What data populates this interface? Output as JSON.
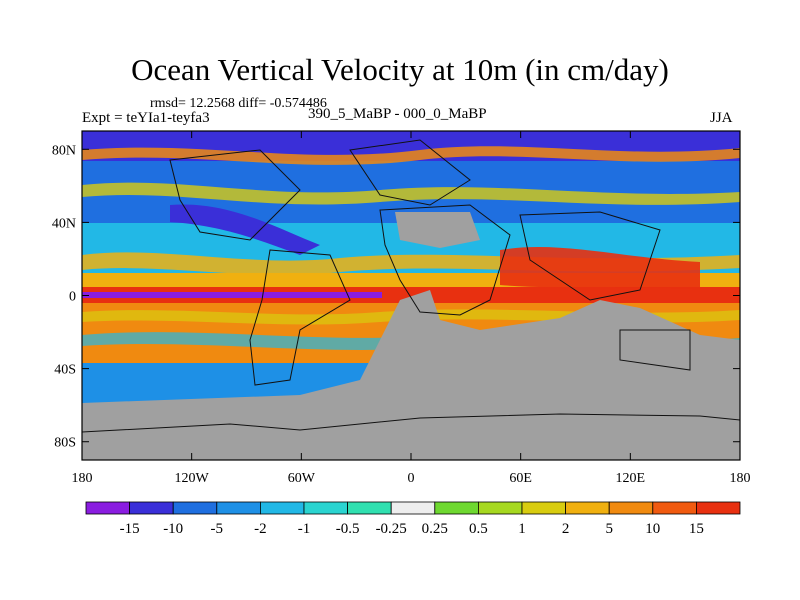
{
  "chart_data": {
    "type": "heatmap",
    "title": "Ocean Vertical Velocity at 10m (in cm/day)",
    "stats_text": "rmsd= 12.2568  diff= -0.574486",
    "left_label": "Expt = teYIa1-teyfa3",
    "center_label": "390_5_MaBP - 000_0_MaBP",
    "right_label": "JJA",
    "x_axis": {
      "ticks": [
        -180,
        -120,
        -60,
        0,
        60,
        120,
        180
      ],
      "tick_labels": [
        "180",
        "120W",
        "60W",
        "0",
        "60E",
        "120E",
        "180"
      ],
      "range": [
        -180,
        180
      ]
    },
    "y_axis": {
      "ticks": [
        80,
        40,
        0,
        -40,
        -80
      ],
      "tick_labels": [
        "80N",
        "40N",
        "0",
        "40S",
        "80S"
      ],
      "range": [
        -90,
        90
      ]
    },
    "colorbar": {
      "levels": [
        "-15",
        "-10",
        "-5",
        "-2",
        "-1",
        "-0.5",
        "-0.25",
        "0.25",
        "0.5",
        "1",
        "2",
        "5",
        "10",
        "15"
      ],
      "colors": [
        "#8a1de0",
        "#3a2fd8",
        "#1f6fe0",
        "#1e90e6",
        "#22b8e6",
        "#2ad4d0",
        "#30e0b0",
        "#eeeeee",
        "#6ed830",
        "#a6d820",
        "#d8cc10",
        "#f0b010",
        "#f08a10",
        "#f05a10",
        "#e83010"
      ]
    },
    "field_bands": [
      {
        "lat_range": [
          65,
          90
        ],
        "value_class": "mixed"
      },
      {
        "lat_range": [
          40,
          65
        ],
        "value_class": "-5 to -15 (blue/purple) with orange streaks"
      },
      {
        "lat_range": [
          10,
          40
        ],
        "value_class": "-2 to 5 (cyan/yellow/orange)"
      },
      {
        "lat_range": [
          -5,
          10
        ],
        "value_class": "10 to 15+ (red) with -15 (purple) core"
      },
      {
        "lat_range": [
          -40,
          -5
        ],
        "value_class": "2 to 10 (orange)"
      },
      {
        "lat_range": [
          -60,
          -40
        ],
        "value_class": "-2 to -15 (blue)"
      },
      {
        "lat_range": [
          -90,
          -60
        ],
        "value_class": "land (grey)"
      }
    ],
    "land_color": "#a0a0a0"
  }
}
